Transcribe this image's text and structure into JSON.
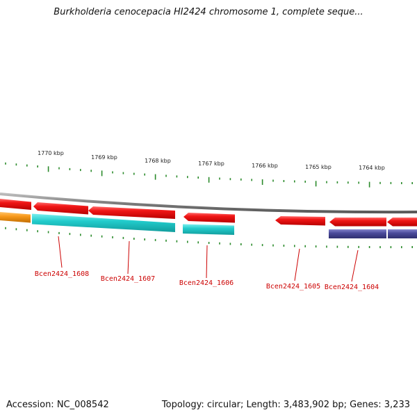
{
  "header": {
    "title": "Burkholderia cenocepacia HI2424 chromosome 1, complete seque..."
  },
  "footer": {
    "accession": "Accession: NC_008542",
    "summary": "Topology: circular; Length: 3,483,902 bp; Genes: 3,233"
  },
  "colors": {
    "backbone": "#7d7d7d",
    "gene_forward": "#ee1111",
    "gene_reverse_cyan": "#22cccc",
    "gene_reverse_orange": "#f89a1c",
    "gene_reverse_purple": "#4b4b9c",
    "tick": "#2a8a2a",
    "label": "#cc0000"
  },
  "scale": {
    "kbp_labels": [
      "1770 kbp",
      "1769 kbp",
      "1768 kbp",
      "1767 kbp",
      "1766 kbp",
      "1765 kbp",
      "1764 kbp"
    ]
  },
  "genes": {
    "labels": [
      "Bcen2424_1608",
      "Bcen2424_1607",
      "Bcen2424_1606",
      "Bcen2424_1605",
      "Bcen2424_1604"
    ]
  }
}
